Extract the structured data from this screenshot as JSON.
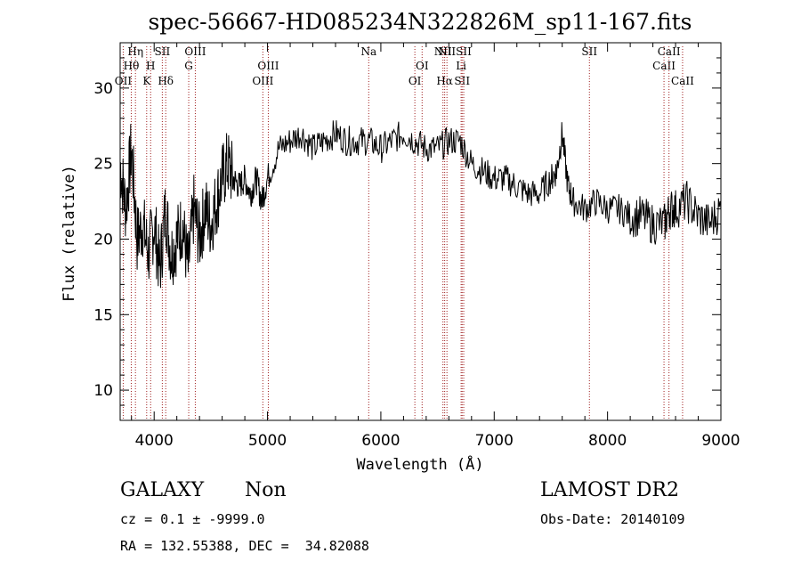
{
  "chart_data": {
    "type": "line",
    "title": "spec-56667-HD085234N322826M_sp11-167.fits",
    "xlabel": "Wavelength (Å)",
    "ylabel": "Flux (relative)",
    "xlim": [
      3700,
      9000
    ],
    "ylim": [
      8,
      33
    ],
    "x_ticks": [
      "4000",
      "5000",
      "6000",
      "7000",
      "8000",
      "9000"
    ],
    "y_ticks": [
      "10",
      "15",
      "20",
      "25",
      "30"
    ],
    "grid": false,
    "legend": "none",
    "series": [
      {
        "color": "#000000",
        "x": [
          3700,
          3750,
          3800,
          3850,
          3900,
          3950,
          4000,
          4050,
          4100,
          4150,
          4200,
          4250,
          4300,
          4350,
          4400,
          4450,
          4500,
          4550,
          4600,
          4650,
          4700,
          4750,
          4800,
          4850,
          4900,
          4950,
          5000,
          5100,
          5200,
          5300,
          5400,
          5500,
          5600,
          5700,
          5800,
          5900,
          6000,
          6100,
          6200,
          6300,
          6400,
          6500,
          6600,
          6700,
          6800,
          6900,
          7000,
          7100,
          7200,
          7300,
          7400,
          7500,
          7550,
          7600,
          7650,
          7700,
          7800,
          7900,
          8000,
          8100,
          8200,
          8300,
          8400,
          8500,
          8550,
          8600,
          8700,
          8800,
          8900,
          9000
        ],
        "y": [
          25,
          22,
          26,
          20,
          21,
          19,
          21,
          18,
          22,
          19,
          20,
          21,
          18,
          22,
          20,
          22,
          21,
          22.5,
          24,
          25,
          24,
          23.5,
          24,
          23,
          24,
          22.5,
          24,
          26,
          26.5,
          27,
          26,
          26.5,
          27,
          26.5,
          26.5,
          26.5,
          26,
          26.5,
          27,
          26.5,
          26,
          26,
          26.5,
          26.5,
          25,
          24.5,
          24,
          24,
          23.5,
          23,
          23,
          24,
          24.5,
          27,
          23.5,
          22.5,
          22,
          22.5,
          22,
          22,
          21.5,
          21.5,
          21,
          21,
          22,
          22,
          22.5,
          21.5,
          21,
          22
        ]
      }
    ],
    "spectral_lines": [
      {
        "label": "OII",
        "x": 3727,
        "row": 3
      },
      {
        "label": "Hθ",
        "x": 3798,
        "row": 2
      },
      {
        "label": "Hη",
        "x": 3835,
        "row": 1
      },
      {
        "label": "K",
        "x": 3934,
        "row": 3
      },
      {
        "label": "H",
        "x": 3969,
        "row": 2
      },
      {
        "label": "SII",
        "x": 4072,
        "row": 1
      },
      {
        "label": "Hδ",
        "x": 4102,
        "row": 3
      },
      {
        "label": "G",
        "x": 4305,
        "row": 2
      },
      {
        "label": "OIII",
        "x": 4363,
        "row": 1
      },
      {
        "label": "OIII",
        "x": 4959,
        "row": 3
      },
      {
        "label": "OIII",
        "x": 5007,
        "row": 2
      },
      {
        "label": "Na",
        "x": 5893,
        "row": 1
      },
      {
        "label": "OI",
        "x": 6300,
        "row": 3
      },
      {
        "label": "OI",
        "x": 6364,
        "row": 2
      },
      {
        "label": "NII",
        "x": 6548,
        "row": 1
      },
      {
        "label": "Hα",
        "x": 6563,
        "row": 3
      },
      {
        "label": "NII",
        "x": 6583,
        "row": 0
      },
      {
        "label": "Li",
        "x": 6708,
        "row": 2
      },
      {
        "label": "SII",
        "x": 6717,
        "row": 3
      },
      {
        "label": "SII",
        "x": 6731,
        "row": 0
      },
      {
        "label": "SII",
        "x": 7840,
        "row": 1
      },
      {
        "label": "CaII",
        "x": 8498,
        "row": 2
      },
      {
        "label": "CaII",
        "x": 8542,
        "row": 1
      },
      {
        "label": "CaII",
        "x": 8662,
        "row": 3
      }
    ]
  },
  "info": {
    "class": "GALAXY",
    "subclass": "Non",
    "survey": "LAMOST DR2",
    "cz": "cz = 0.1 ± -9999.0",
    "obs_date": "Obs-Date: 20140109",
    "coords": "RA = 132.55388, DEC =  34.82088"
  }
}
